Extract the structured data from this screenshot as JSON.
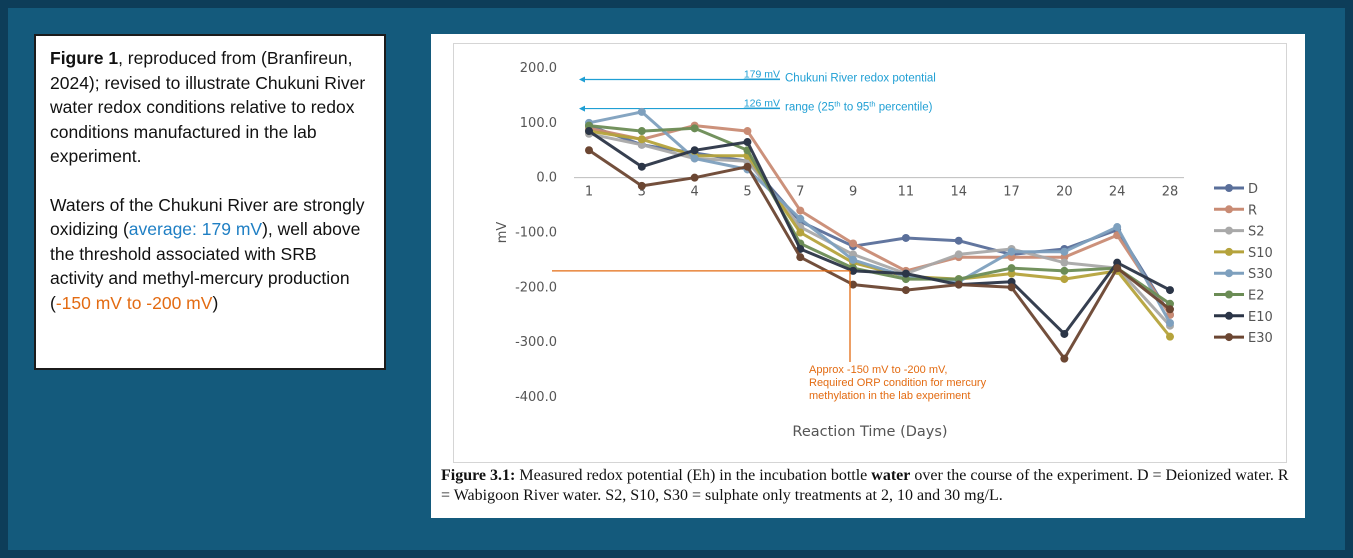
{
  "note": {
    "p1_bold": "Figure 1",
    "p1_text": ", reproduced from (Branfireun, 2024); revised to illustrate Chukuni  River water redox conditions relative to redox conditions manufactured in the lab experiment.",
    "p2_a": "Waters of the Chukuni  River are strongly oxidizing  (",
    "p2_blue": "average: 179 mV",
    "p2_b": "),  well above the threshold associated with SRB activity and methyl-mercury production (",
    "p2_orange": "-150 mV to -200 mV",
    "p2_c": ")"
  },
  "caption": {
    "bold": "Figure 3.1:",
    "text1": " Measured redox potential (Eh) in the incubation bottle ",
    "bold2": "water",
    "text2": " over the course of the experiment.  D = Deionized water.  R = Wabigoon River water.  S2, S10, S30 = sulphate only treatments at 2, 10 and 30 mg/L."
  },
  "chart_data": {
    "type": "line",
    "xlabel": "Reaction Time (Days)",
    "ylabel": "mV",
    "ylim": [
      -400,
      200
    ],
    "yticks": [
      "200.0",
      "100.0",
      "0.0",
      "-100.0",
      "-200.0",
      "-300.0",
      "-400.0"
    ],
    "categories": [
      "1",
      "3",
      "4",
      "5",
      "7",
      "9",
      "11",
      "14",
      "17",
      "20",
      "24",
      "28"
    ],
    "legend_position": "right",
    "series": [
      {
        "name": "D",
        "color": "#5a6f9a",
        "values": [
          95,
          60,
          45,
          30,
          -80,
          -125,
          -110,
          -115,
          -140,
          -130,
          -95,
          -250
        ]
      },
      {
        "name": "R",
        "color": "#c98b74",
        "values": [
          90,
          70,
          95,
          85,
          -60,
          -120,
          -170,
          -145,
          -145,
          -145,
          -105,
          -250
        ]
      },
      {
        "name": "S2",
        "color": "#a9a9a9",
        "values": [
          80,
          60,
          35,
          30,
          -90,
          -140,
          -175,
          -140,
          -130,
          -155,
          -165,
          -270
        ]
      },
      {
        "name": "S10",
        "color": "#b5a33c",
        "values": [
          85,
          70,
          40,
          40,
          -100,
          -155,
          -180,
          -185,
          -175,
          -185,
          -170,
          -290
        ]
      },
      {
        "name": "S30",
        "color": "#7ea0be",
        "values": [
          100,
          120,
          35,
          15,
          -75,
          -150,
          -180,
          -190,
          -135,
          -135,
          -90,
          -265
        ]
      },
      {
        "name": "E2",
        "color": "#6b8c55",
        "values": [
          95,
          85,
          90,
          50,
          -120,
          -165,
          -185,
          -185,
          -165,
          -170,
          -165,
          -230
        ]
      },
      {
        "name": "E10",
        "color": "#2b3547",
        "values": [
          85,
          20,
          50,
          65,
          -130,
          -170,
          -175,
          -195,
          -190,
          -285,
          -155,
          -205
        ]
      },
      {
        "name": "E30",
        "color": "#6b4632",
        "values": [
          50,
          -15,
          0,
          20,
          -145,
          -195,
          -205,
          -195,
          -200,
          -330,
          -165,
          -240
        ]
      }
    ],
    "annotations": {
      "chukuni_label": "Chukuni River redox potential range (25th to 95th percentile)",
      "chukuni_line1": "Chukuni River redox potential",
      "chukuni_line2_pre": "range (25",
      "chukuni_line2_sup1": "th",
      "chukuni_line2_mid": " to 95",
      "chukuni_line2_sup2": "th",
      "chukuni_line2_post": " percentile)",
      "chukuni_high": "179 mV",
      "chukuni_low": "126 mV",
      "chukuni_high_value": 179,
      "chukuni_low_value": 126,
      "orp_lines": [
        "Approx -150 mV to -200 mV,",
        "Required ORP condition for mercury",
        "methylation in the lab experiment"
      ],
      "orp_value": -170,
      "blue_color": "#1f9fd4",
      "orange_color": "#e36b12"
    },
    "grid": false
  }
}
